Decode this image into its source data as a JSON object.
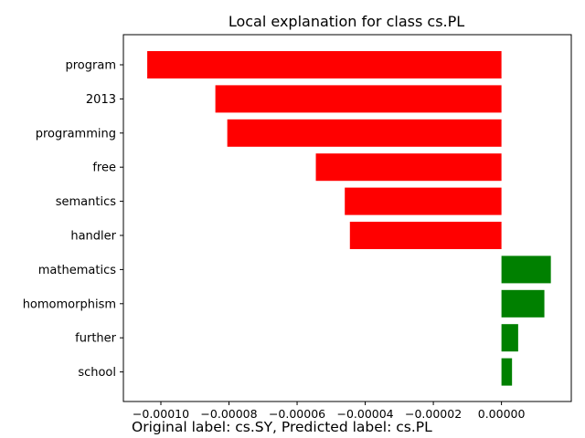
{
  "chart_data": {
    "type": "bar",
    "orientation": "horizontal",
    "title": "Local explanation for class cs.PL",
    "categories": [
      "program",
      "2013",
      "programming",
      "free",
      "semantics",
      "handler",
      "mathematics",
      "homomorphism",
      "further",
      "school"
    ],
    "values": [
      -0.000104,
      -8.4e-05,
      -8.05e-05,
      -5.45e-05,
      -4.6e-05,
      -4.45e-05,
      1.45e-05,
      1.26e-05,
      4.9e-06,
      3.1e-06
    ],
    "xlim": [
      -0.000111,
      2.05e-05
    ],
    "xticks": [
      -0.0001,
      -8e-05,
      -6e-05,
      -4e-05,
      -2e-05,
      0.0
    ],
    "xtick_labels": [
      "−0.00010",
      "−0.00008",
      "−0.00006",
      "−0.00004",
      "−0.00002",
      "0.00000"
    ],
    "colors": {
      "negative": "#ff0000",
      "positive": "#008000"
    },
    "grid": false,
    "legend": "none"
  },
  "caption": "Original label: cs.SY, Predicted label: cs.PL"
}
